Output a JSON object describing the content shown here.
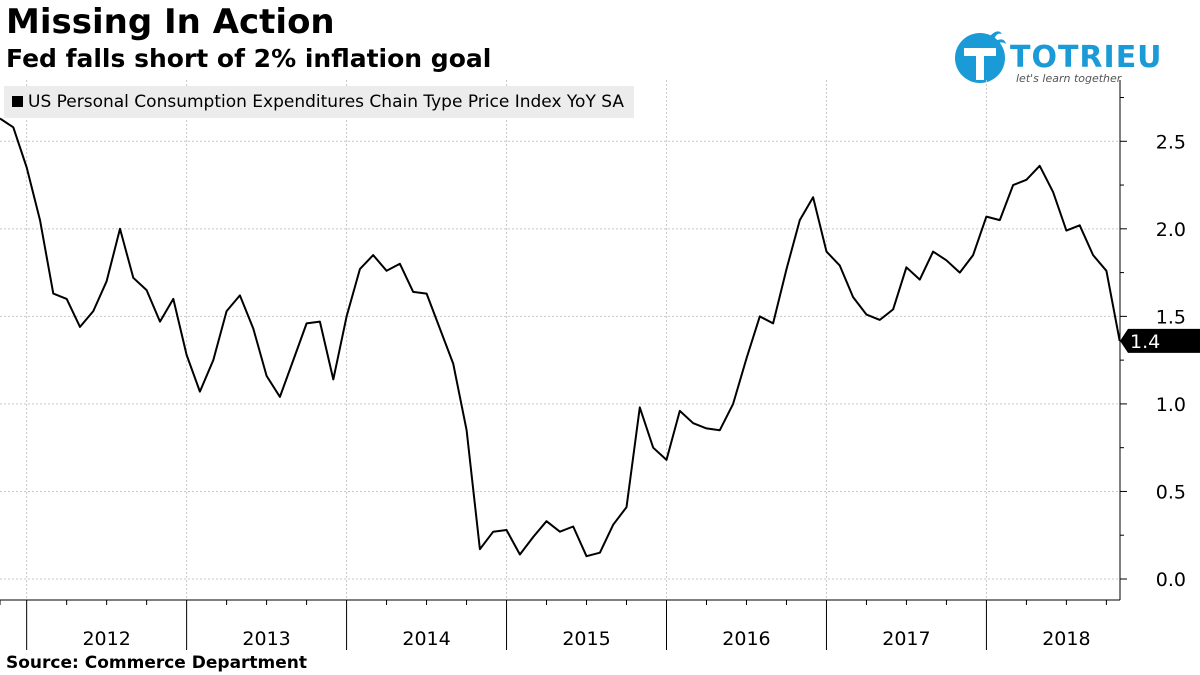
{
  "title": "Missing In Action",
  "subtitle": "Fed falls short of 2% inflation goal",
  "source": "Source: Commerce Department",
  "logo": {
    "name": "TOTRIEU",
    "tagline": "let's learn together",
    "color": "#1a9ad6"
  },
  "chart_data": {
    "type": "line",
    "title": "Missing In Action",
    "subtitle": "Fed falls short of 2% inflation goal",
    "xlabel": "",
    "ylabel": "",
    "legend": "top-left",
    "grid": true,
    "ylim": [
      -0.12,
      2.85
    ],
    "y_ticks": [
      "0.0",
      "0.5",
      "1.0",
      "1.5",
      "2.0",
      "2.5"
    ],
    "x_ticks": [
      "2012",
      "2013",
      "2014",
      "2015",
      "2016",
      "2017",
      "2018"
    ],
    "last_value_label": "1.4",
    "x_start": "2011-11",
    "series": [
      {
        "name": "US Personal Consumption Expenditures Chain Type Price Index YoY SA",
        "color": "#000000",
        "values": [
          2.63,
          2.58,
          2.35,
          2.05,
          1.63,
          1.6,
          1.44,
          1.53,
          1.7,
          2.0,
          1.72,
          1.65,
          1.47,
          1.6,
          1.28,
          1.07,
          1.25,
          1.53,
          1.62,
          1.43,
          1.16,
          1.04,
          1.25,
          1.46,
          1.47,
          1.14,
          1.5,
          1.77,
          1.85,
          1.76,
          1.8,
          1.64,
          1.63,
          1.43,
          1.23,
          0.85,
          0.17,
          0.27,
          0.28,
          0.14,
          0.24,
          0.33,
          0.27,
          0.3,
          0.13,
          0.15,
          0.31,
          0.41,
          0.98,
          0.75,
          0.68,
          0.96,
          0.89,
          0.86,
          0.85,
          1.0,
          1.26,
          1.5,
          1.46,
          1.77,
          2.05,
          2.18,
          1.87,
          1.79,
          1.61,
          1.51,
          1.48,
          1.54,
          1.78,
          1.71,
          1.87,
          1.82,
          1.75,
          1.85,
          2.07,
          2.05,
          2.25,
          2.28,
          2.36,
          2.21,
          1.99,
          2.02,
          1.85,
          1.76,
          1.36
        ]
      }
    ]
  }
}
